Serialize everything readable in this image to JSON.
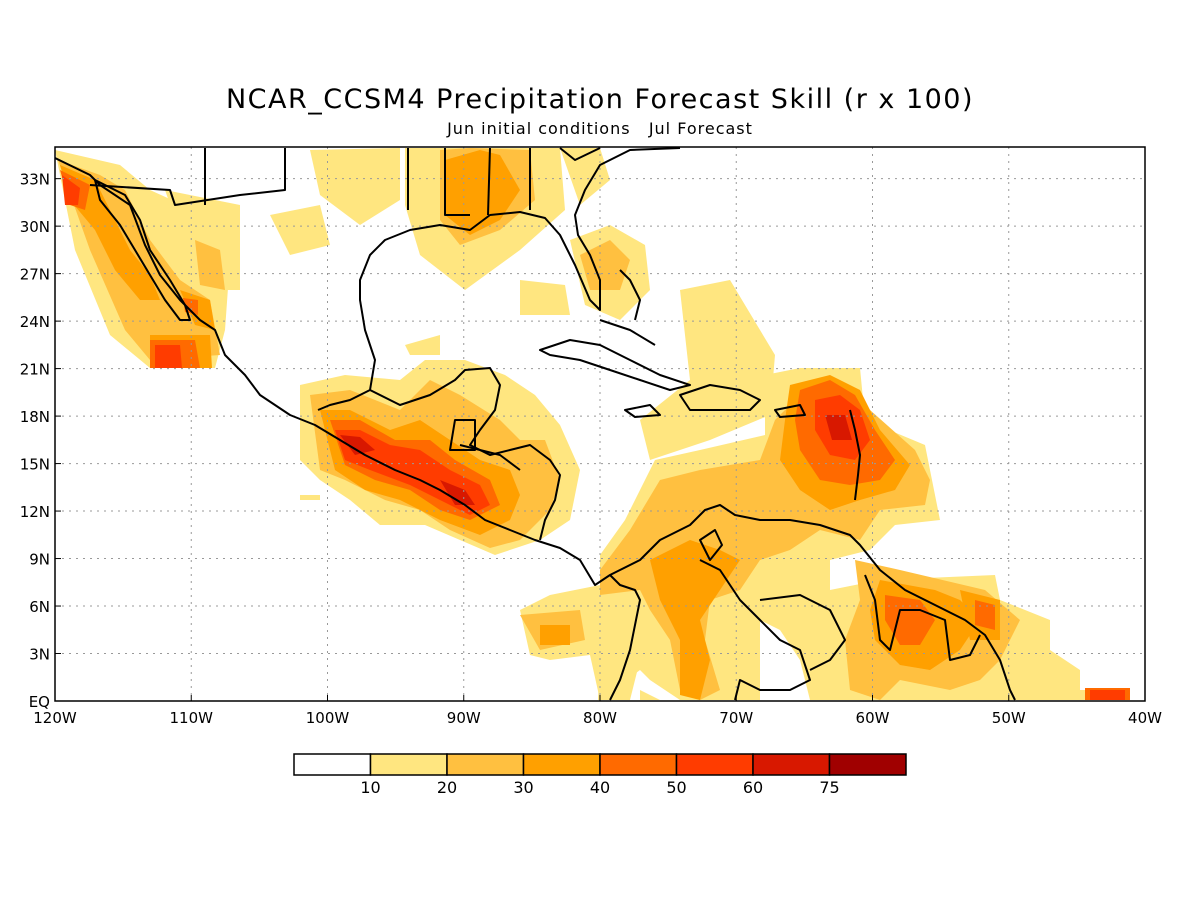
{
  "title": "NCAR_CCSM4 Precipitation Forecast Skill (r x 100)",
  "subtitle": "Jun initial conditions   Jul Forecast",
  "lat_ticks": [
    "33N",
    "30N",
    "27N",
    "24N",
    "21N",
    "18N",
    "15N",
    "12N",
    "9N",
    "6N",
    "3N",
    "EQ"
  ],
  "lon_ticks": [
    "120W",
    "110W",
    "100W",
    "90W",
    "80W",
    "70W",
    "60W",
    "50W",
    "40W"
  ],
  "colorbar": {
    "labels": [
      "10",
      "20",
      "30",
      "40",
      "50",
      "60",
      "75"
    ],
    "colors": [
      "#ffffff",
      "#ffe680",
      "#ffc040",
      "#ffa000",
      "#ff6a00",
      "#ff3c00",
      "#d81800",
      "#a00000"
    ]
  },
  "extent": {
    "lon_min": -120,
    "lon_max": -40,
    "lat_min": 0,
    "lat_max": 35
  }
}
